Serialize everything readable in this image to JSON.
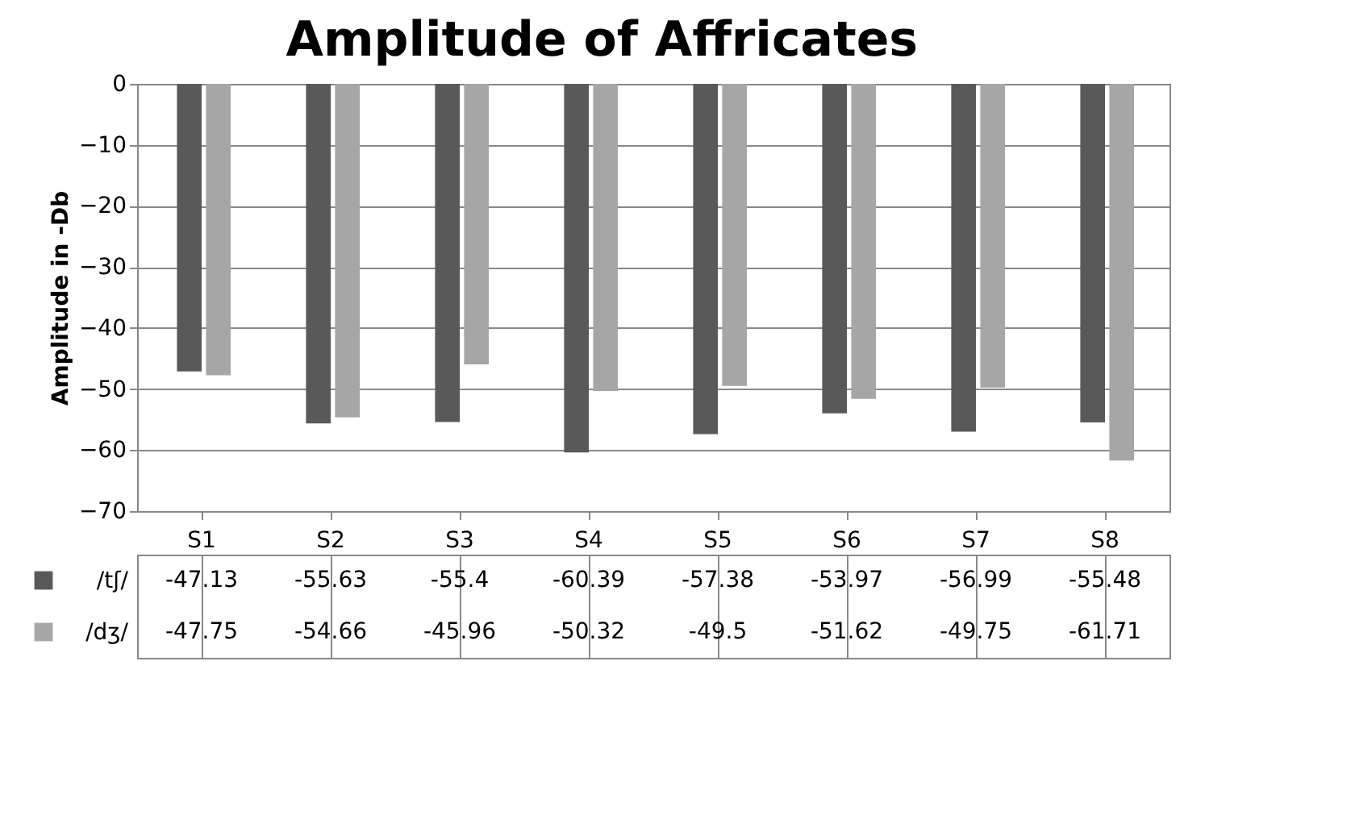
{
  "chart_data": {
    "type": "bar",
    "title": "Amplitude of Affricates",
    "ylabel": "Amplitude in -Db",
    "categories": [
      "S1",
      "S2",
      "S3",
      "S4",
      "S5",
      "S6",
      "S7",
      "S8"
    ],
    "series": [
      {
        "name": "/tʃ/",
        "color": "#595959",
        "values": [
          -47.13,
          -55.63,
          -55.4,
          -60.39,
          -57.38,
          -53.97,
          -56.99,
          -55.48
        ]
      },
      {
        "name": "/dʒ/",
        "color": "#a6a6a6",
        "values": [
          -47.75,
          -54.66,
          -45.96,
          -50.32,
          -49.5,
          -51.62,
          -49.75,
          -61.71
        ]
      }
    ],
    "ylim": [
      -70,
      0
    ],
    "yticks": [
      0,
      -10,
      -20,
      -30,
      -40,
      -50,
      -60,
      -70
    ],
    "grid": "y",
    "data_labels": true,
    "legend": "bottom left"
  }
}
